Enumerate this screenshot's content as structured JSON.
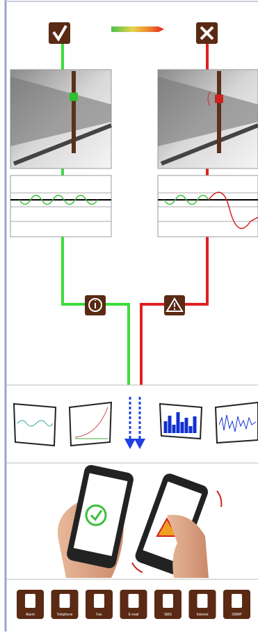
{
  "icons": [
    {
      "label": "Alarm"
    },
    {
      "label": "Telephone"
    },
    {
      "label": "Fax"
    },
    {
      "label": "E-mail"
    },
    {
      "label": "SMS"
    },
    {
      "label": "Internet"
    },
    {
      "label": "SNMP"
    }
  ]
}
